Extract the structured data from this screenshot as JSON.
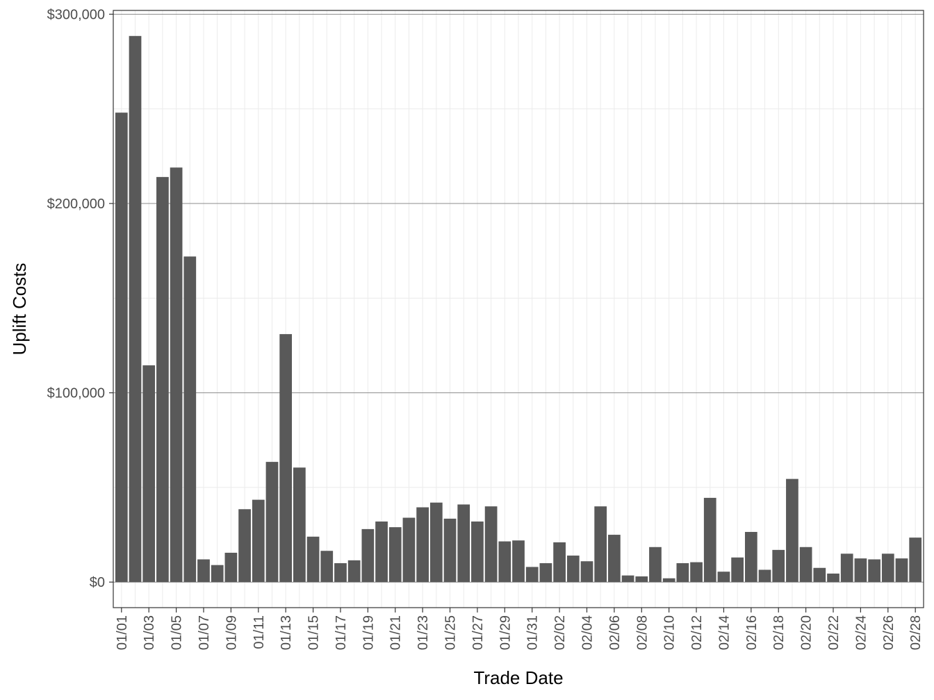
{
  "chart_data": {
    "type": "bar",
    "xlabel": "Trade Date",
    "ylabel": "Uplift Costs",
    "ylim": [
      -13500,
      302000
    ],
    "y_ticks": [
      0,
      100000,
      200000,
      300000
    ],
    "y_tick_labels": [
      "$0",
      "$100,000",
      "$200,000",
      "$300,000"
    ],
    "grid": true,
    "bar_color": "#595959",
    "categories": [
      "01/01",
      "01/02",
      "01/03",
      "01/04",
      "01/05",
      "01/06",
      "01/07",
      "01/08",
      "01/09",
      "01/10",
      "01/11",
      "01/12",
      "01/13",
      "01/14",
      "01/15",
      "01/16",
      "01/17",
      "01/18",
      "01/19",
      "01/20",
      "01/21",
      "01/22",
      "01/23",
      "01/24",
      "01/25",
      "01/26",
      "01/27",
      "01/28",
      "01/29",
      "01/30",
      "01/31",
      "02/01",
      "02/02",
      "02/03",
      "02/04",
      "02/05",
      "02/06",
      "02/07",
      "02/08",
      "02/09",
      "02/10",
      "02/11",
      "02/12",
      "02/13",
      "02/14",
      "02/15",
      "02/16",
      "02/17",
      "02/18",
      "02/19",
      "02/20",
      "02/21",
      "02/22",
      "02/23",
      "02/24",
      "02/25",
      "02/26",
      "02/27",
      "02/28"
    ],
    "x_tick_labels": [
      "01/01",
      "01/03",
      "01/05",
      "01/07",
      "01/09",
      "01/11",
      "01/13",
      "01/15",
      "01/17",
      "01/19",
      "01/21",
      "01/23",
      "01/25",
      "01/27",
      "01/29",
      "01/31",
      "02/02",
      "02/04",
      "02/06",
      "02/08",
      "02/10",
      "02/12",
      "02/14",
      "02/16",
      "02/18",
      "02/20",
      "02/22",
      "02/24",
      "02/26",
      "02/28"
    ],
    "values": [
      248000,
      288500,
      114500,
      214000,
      219000,
      172000,
      12000,
      9000,
      15500,
      38500,
      43500,
      63500,
      131000,
      60500,
      24000,
      16500,
      10000,
      11500,
      28000,
      32000,
      29000,
      34000,
      39500,
      42000,
      33500,
      41000,
      32000,
      40000,
      21500,
      22000,
      8000,
      10000,
      21000,
      14000,
      11000,
      40000,
      25000,
      3500,
      3000,
      18500,
      2000,
      10000,
      10500,
      44500,
      5500,
      13000,
      26500,
      6500,
      17000,
      54500,
      18500,
      7500,
      4500,
      15000,
      12500,
      12000,
      15000,
      12500,
      23500
    ]
  }
}
